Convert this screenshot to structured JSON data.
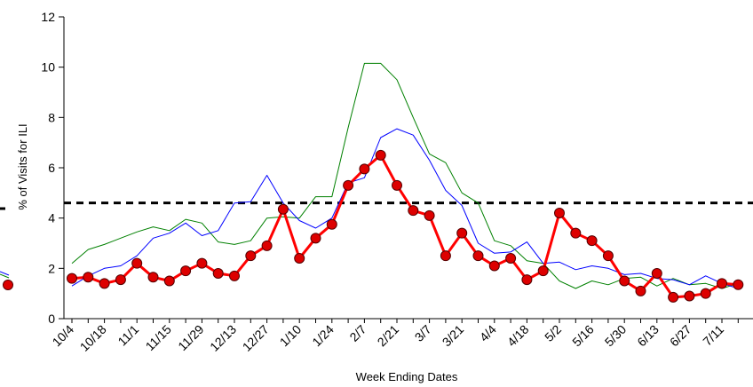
{
  "chart_data": {
    "type": "line",
    "title": "",
    "xlabel": "Week Ending Dates",
    "ylabel": "% of Visits for ILI",
    "ylim": [
      0,
      12
    ],
    "yticks": [
      0,
      2,
      4,
      6,
      8,
      10,
      12
    ],
    "xtick_labels": [
      "10/4",
      "10/18",
      "11/1",
      "11/15",
      "11/29",
      "12/13",
      "12/27",
      "1/10",
      "1/24",
      "2/7",
      "2/21",
      "3/7",
      "3/21",
      "4/4",
      "4/18",
      "5/2",
      "5/16",
      "5/30",
      "6/13",
      "6/27",
      "7/11"
    ],
    "series": [
      {
        "color": "#ff0000",
        "marker_fill": "#dd0000",
        "marker": "circle",
        "values": [
          1.6,
          1.65,
          1.4,
          1.55,
          2.2,
          1.65,
          1.5,
          1.9,
          2.2,
          1.8,
          1.7,
          2.5,
          2.9,
          4.35,
          2.4,
          3.2,
          3.75,
          5.3,
          5.95,
          6.5,
          5.3,
          4.3,
          4.1,
          2.5,
          3.4,
          2.5,
          2.1,
          2.4,
          1.55,
          1.9,
          4.2,
          3.4,
          3.1,
          2.5,
          1.5,
          1.1,
          1.8,
          0.85,
          0.9,
          1.0,
          1.4,
          1.35
        ]
      },
      {
        "color": "#0000ff",
        "values": [
          1.3,
          1.7,
          2.0,
          2.1,
          2.5,
          3.2,
          3.4,
          3.8,
          3.3,
          3.5,
          4.6,
          4.65,
          5.7,
          4.6,
          3.9,
          3.6,
          4.0,
          5.4,
          5.6,
          7.2,
          7.55,
          7.3,
          6.3,
          5.1,
          4.5,
          3.0,
          2.6,
          2.65,
          3.05,
          2.2,
          2.25,
          1.95,
          2.1,
          2.0,
          1.75,
          1.8,
          1.6,
          1.55,
          1.35,
          1.7,
          1.4,
          1.2
        ]
      },
      {
        "color": "#008000",
        "values": [
          2.2,
          2.75,
          2.95,
          3.2,
          3.45,
          3.65,
          3.5,
          3.95,
          3.8,
          3.05,
          2.95,
          3.1,
          4.0,
          4.05,
          4.0,
          4.85,
          4.85,
          7.6,
          10.15,
          10.15,
          9.5,
          8.0,
          6.55,
          6.2,
          5.0,
          4.6,
          3.1,
          2.9,
          2.3,
          2.2,
          1.5,
          1.2,
          1.5,
          1.35,
          1.6,
          1.65,
          1.3,
          1.6,
          1.35,
          1.4,
          1.2,
          1.4
        ]
      }
    ],
    "left_partial_series": [
      {
        "color": "#ff0000",
        "marker_fill": "#dd0000",
        "x_last": "",
        "values": [
          1.35
        ]
      },
      {
        "color": "#0000ff",
        "values": [
          1.0,
          0.7
        ]
      },
      {
        "color": "#008000",
        "values": [
          0.9,
          0.6
        ]
      }
    ],
    "baseline": {
      "value": 4.6,
      "style": "dashed",
      "color": "#000000"
    }
  }
}
